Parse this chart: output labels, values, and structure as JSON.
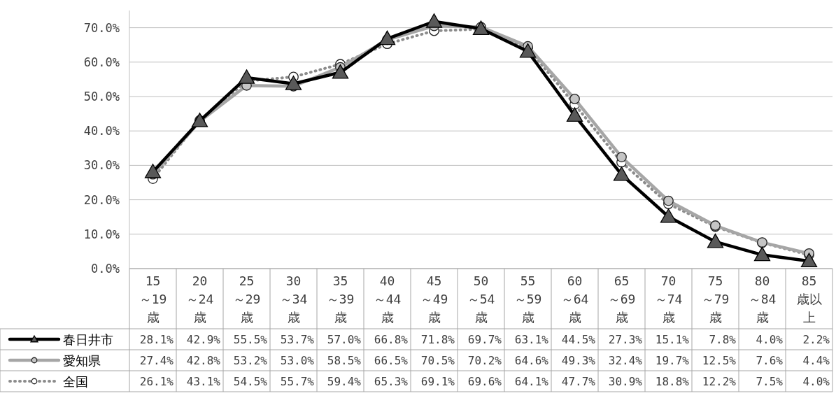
{
  "chart_data": {
    "type": "line",
    "categories": [
      "15～19歳",
      "20～24歳",
      "25～29歳",
      "30～34歳",
      "35～39歳",
      "40～44歳",
      "45～49歳",
      "50～54歳",
      "55～59歳",
      "60～64歳",
      "65～69歳",
      "70～74歳",
      "75～79歳",
      "80～84歳",
      "85歳以上"
    ],
    "series": [
      {
        "name": "春日井市",
        "color": "#000000",
        "marker": "triangle",
        "line_style": "solid",
        "values": [
          28.1,
          42.9,
          55.5,
          53.7,
          57.0,
          66.8,
          71.8,
          69.7,
          63.1,
          44.5,
          27.3,
          15.1,
          7.8,
          4.0,
          2.2
        ],
        "value_labels": [
          "28.1%",
          "42.9%",
          "55.5%",
          "53.7%",
          "57.0%",
          "66.8%",
          "71.8%",
          "69.7%",
          "63.1%",
          "44.5%",
          "27.3%",
          "15.1%",
          "7.8%",
          "4.0%",
          "2.2%"
        ]
      },
      {
        "name": "愛知県",
        "color": "#a6a6a6",
        "marker": "circle",
        "line_style": "solid",
        "values": [
          27.4,
          42.8,
          53.2,
          53.0,
          58.5,
          66.5,
          70.5,
          70.2,
          64.6,
          49.3,
          32.4,
          19.7,
          12.5,
          7.6,
          4.4
        ],
        "value_labels": [
          "27.4%",
          "42.8%",
          "53.2%",
          "53.0%",
          "58.5%",
          "66.5%",
          "70.5%",
          "70.2%",
          "64.6%",
          "49.3%",
          "32.4%",
          "19.7%",
          "12.5%",
          "7.6%",
          "4.4%"
        ]
      },
      {
        "name": "全国",
        "color": "#8c8c8c",
        "marker": "circle",
        "line_style": "dotted",
        "values": [
          26.1,
          43.1,
          54.5,
          55.7,
          59.4,
          65.3,
          69.1,
          69.6,
          64.1,
          47.7,
          30.9,
          18.8,
          12.2,
          7.5,
          4.0
        ],
        "value_labels": [
          "26.1%",
          "43.1%",
          "54.5%",
          "55.7%",
          "59.4%",
          "65.3%",
          "69.1%",
          "69.6%",
          "64.1%",
          "47.7%",
          "30.9%",
          "18.8%",
          "12.2%",
          "7.5%",
          "4.0%"
        ]
      }
    ],
    "ylim": [
      0,
      75
    ],
    "yticks": [
      {
        "value": 0,
        "label": "0.0%"
      },
      {
        "value": 10,
        "label": "10.0%"
      },
      {
        "value": 20,
        "label": "20.0%"
      },
      {
        "value": 30,
        "label": "30.0%"
      },
      {
        "value": 40,
        "label": "40.0%"
      },
      {
        "value": 50,
        "label": "50.0%"
      },
      {
        "value": 60,
        "label": "60.0%"
      },
      {
        "value": 70,
        "label": "70.0%"
      }
    ],
    "grid": "y",
    "legend": "bottom"
  }
}
